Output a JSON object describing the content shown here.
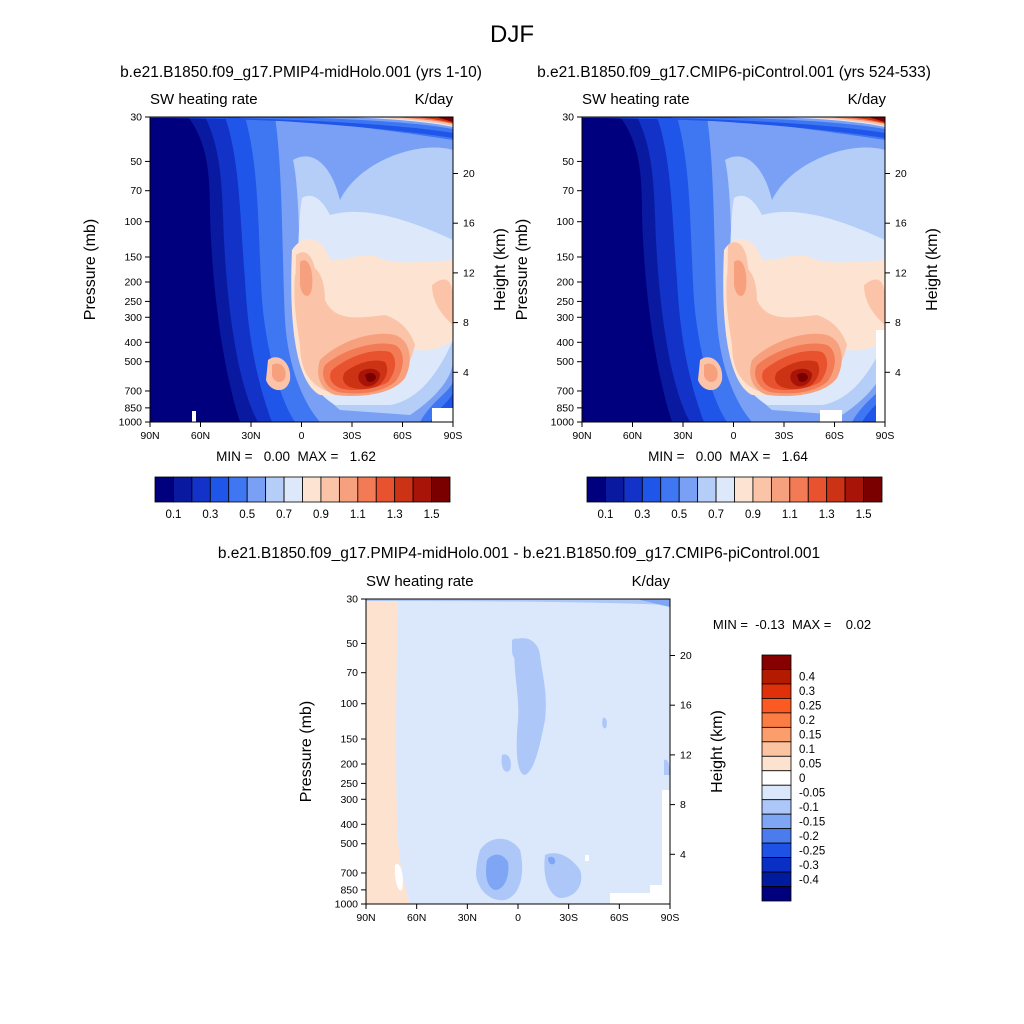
{
  "figure": {
    "title": "DJF"
  },
  "chart_data": [
    {
      "type": "heatmap",
      "title": "b.e21.B1850.f09_g17.PMIP4-midHolo.001 (yrs 1-10)",
      "left_label": "SW heating rate",
      "right_label": "K/day",
      "ylabel": "Pressure (mb)",
      "y2label": "Height (km)",
      "x_ticks": [
        "90N",
        "60N",
        "30N",
        "0",
        "30S",
        "60S",
        "90S"
      ],
      "y_ticks": [
        "30",
        "50",
        "70",
        "100",
        "150",
        "200",
        "250",
        "300",
        "400",
        "500",
        "700",
        "850",
        "1000"
      ],
      "y2_ticks": [
        "20",
        "16",
        "12",
        "8",
        "4"
      ],
      "y2_tick_heights_km": [
        20,
        16,
        12,
        8,
        4
      ],
      "stats": "MIN =   0.00  MAX =   1.62",
      "levels": [
        "0.1",
        "0.3",
        "0.5",
        "0.7",
        "0.9",
        "1.1",
        "1.3",
        "1.5"
      ]
    },
    {
      "type": "heatmap",
      "title": "b.e21.B1850.f09_g17.CMIP6-piControl.001 (yrs 524-533)",
      "left_label": "SW heating rate",
      "right_label": "K/day",
      "ylabel": "Pressure (mb)",
      "y2label": "Height (km)",
      "x_ticks": [
        "90N",
        "60N",
        "30N",
        "0",
        "30S",
        "60S",
        "90S"
      ],
      "y_ticks": [
        "30",
        "50",
        "70",
        "100",
        "150",
        "200",
        "250",
        "300",
        "400",
        "500",
        "700",
        "850",
        "1000"
      ],
      "y2_ticks": [
        "20",
        "16",
        "12",
        "8",
        "4"
      ],
      "y2_tick_heights_km": [
        20,
        16,
        12,
        8,
        4
      ],
      "stats": "MIN =   0.00  MAX =   1.64",
      "levels": [
        "0.1",
        "0.3",
        "0.5",
        "0.7",
        "0.9",
        "1.1",
        "1.3",
        "1.5"
      ]
    },
    {
      "type": "heatmap",
      "title": "b.e21.B1850.f09_g17.PMIP4-midHolo.001 - b.e21.B1850.f09_g17.CMIP6-piControl.001",
      "left_label": "SW heating rate",
      "right_label": "K/day",
      "ylabel": "Pressure (mb)",
      "y2label": "Height (km)",
      "x_ticks": [
        "90N",
        "60N",
        "30N",
        "0",
        "30S",
        "60S",
        "90S"
      ],
      "y_ticks": [
        "30",
        "50",
        "70",
        "100",
        "150",
        "200",
        "250",
        "300",
        "400",
        "500",
        "700",
        "850",
        "1000"
      ],
      "y2_ticks": [
        "20",
        "16",
        "12",
        "8",
        "4"
      ],
      "y2_tick_heights_km": [
        20,
        16,
        12,
        8,
        4
      ],
      "stats": "MIN =  -0.13  MAX =    0.02",
      "levels": [
        "0.4",
        "0.3",
        "0.25",
        "0.2",
        "0.15",
        "0.1",
        "0.05",
        "0",
        "-0.05",
        "-0.1",
        "-0.15",
        "-0.2",
        "-0.25",
        "-0.3",
        "-0.4"
      ]
    }
  ],
  "colors": {
    "abs_scale": [
      "#00007f",
      "#0a1aa0",
      "#1232c8",
      "#1f55e8",
      "#3f76f2",
      "#7aa0f5",
      "#b4cef8",
      "#dde9fb",
      "#fde4d2",
      "#fbc4a8",
      "#f7a07e",
      "#f27a55",
      "#e8522e",
      "#cc3214",
      "#a81408",
      "#7a0000"
    ],
    "diff_scale": [
      "#860000",
      "#b31a00",
      "#e0300a",
      "#fb5a22",
      "#fb7d44",
      "#fb9e6c",
      "#fcc3a0",
      "#fde3cf",
      "#ffffff",
      "#dbe8fb",
      "#adc7f8",
      "#7ea6f5",
      "#4a7cee",
      "#1e52e6",
      "#0a2fc4",
      "#001b9e",
      "#00007f"
    ]
  }
}
